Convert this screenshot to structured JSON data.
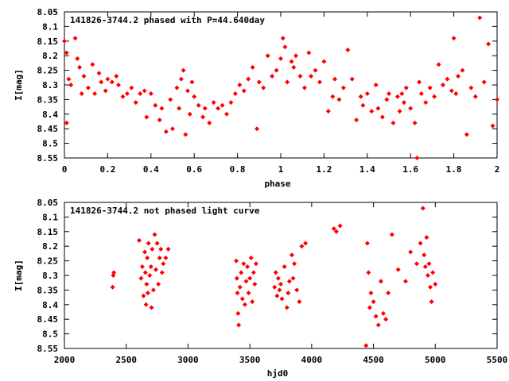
{
  "chart_data": [
    {
      "type": "scatter",
      "title": "141826-3744.2 phased with P=44.640day",
      "xlabel": "phase",
      "ylabel": "I[mag]",
      "xlim": [
        0,
        2
      ],
      "ylim": [
        8.05,
        8.55
      ],
      "y_inverted": true,
      "grid": false,
      "marker": "diamond",
      "color": "#ff0000",
      "xticks": [
        "0",
        "0.2",
        "0.4",
        "0.6",
        "0.8",
        "1",
        "1.2",
        "1.4",
        "1.6",
        "1.8",
        "2"
      ],
      "yticks": [
        "8.05",
        "8.1",
        "8.15",
        "8.2",
        "8.25",
        "8.3",
        "8.35",
        "8.4",
        "8.45",
        "8.5",
        "8.55"
      ],
      "series": [
        {
          "x": [
            0.0,
            0.01,
            0.02,
            0.01,
            0.03,
            0.05,
            0.06,
            0.07,
            0.08,
            0.09,
            0.11,
            0.13,
            0.14,
            0.16,
            0.17,
            0.19,
            0.2,
            0.22,
            0.24,
            0.25,
            0.27,
            0.29,
            0.31,
            0.33,
            0.35,
            0.37,
            0.38,
            0.4,
            0.42,
            0.44,
            0.45,
            0.47,
            0.49,
            0.5,
            0.52,
            0.53,
            0.54,
            0.55,
            0.56,
            0.57,
            0.58,
            0.59,
            0.6,
            0.62,
            0.64,
            0.65,
            0.67,
            0.69,
            0.71,
            0.73,
            0.75,
            0.77,
            0.79,
            0.81,
            0.83,
            0.85,
            0.87,
            0.89,
            0.9,
            0.92,
            0.94,
            0.96,
            0.98,
            1.0,
            1.01,
            1.02,
            1.03,
            1.05,
            1.06,
            1.07,
            1.09,
            1.11,
            1.13,
            1.14,
            1.16,
            1.18,
            1.2,
            1.22,
            1.24,
            1.25,
            1.27,
            1.29,
            1.31,
            1.33,
            1.35,
            1.37,
            1.38,
            1.4,
            1.42,
            1.44,
            1.45,
            1.47,
            1.49,
            1.5,
            1.52,
            1.54,
            1.55,
            1.56,
            1.57,
            1.58,
            1.6,
            1.62,
            1.63,
            1.64,
            1.65,
            1.67,
            1.69,
            1.71,
            1.73,
            1.75,
            1.77,
            1.79,
            1.8,
            1.81,
            1.82,
            1.84,
            1.86,
            1.88,
            1.9,
            1.92,
            1.94,
            1.96,
            1.98,
            2.0
          ],
          "y": [
            8.15,
            8.19,
            8.28,
            8.43,
            8.3,
            8.14,
            8.21,
            8.24,
            8.33,
            8.27,
            8.31,
            8.23,
            8.33,
            8.26,
            8.29,
            8.32,
            8.28,
            8.29,
            8.27,
            8.3,
            8.34,
            8.33,
            8.31,
            8.36,
            8.33,
            8.32,
            8.41,
            8.33,
            8.37,
            8.42,
            8.38,
            8.46,
            8.35,
            8.45,
            8.31,
            8.38,
            8.28,
            8.25,
            8.47,
            8.32,
            8.4,
            8.29,
            8.34,
            8.37,
            8.41,
            8.38,
            8.43,
            8.36,
            8.38,
            8.37,
            8.4,
            8.36,
            8.33,
            8.3,
            8.32,
            8.28,
            8.24,
            8.45,
            8.29,
            8.31,
            8.2,
            8.27,
            8.25,
            8.21,
            8.14,
            8.17,
            8.29,
            8.22,
            8.24,
            8.2,
            8.27,
            8.31,
            8.19,
            8.27,
            8.25,
            8.29,
            8.22,
            8.39,
            8.34,
            8.28,
            8.35,
            8.31,
            8.18,
            8.28,
            8.42,
            8.34,
            8.37,
            8.33,
            8.39,
            8.3,
            8.38,
            8.41,
            8.35,
            8.33,
            8.43,
            8.34,
            8.39,
            8.33,
            8.36,
            8.31,
            8.38,
            8.43,
            8.55,
            8.29,
            8.33,
            8.36,
            8.31,
            8.34,
            8.23,
            8.3,
            8.28,
            8.32,
            8.14,
            8.33,
            8.27,
            8.25,
            8.47,
            8.31,
            8.34,
            8.07,
            8.29,
            8.16,
            8.44,
            8.35
          ]
        }
      ]
    },
    {
      "type": "scatter",
      "title": "141826-3744.2 not phased light curve",
      "xlabel": "hjd0",
      "ylabel": "I[mag]",
      "xlim": [
        2000,
        5500
      ],
      "ylim": [
        8.05,
        8.55
      ],
      "y_inverted": true,
      "grid": false,
      "marker": "diamond",
      "color": "#ff0000",
      "xticks": [
        "2000",
        "2500",
        "3000",
        "3500",
        "4000",
        "4500",
        "5000",
        "5500"
      ],
      "yticks": [
        "8.05",
        "8.1",
        "8.15",
        "8.2",
        "8.25",
        "8.3",
        "8.35",
        "8.4",
        "8.45",
        "8.5",
        "8.55"
      ],
      "series": [
        {
          "x": [
            2390,
            2395,
            2400,
            2605,
            2620,
            2630,
            2640,
            2650,
            2655,
            2660,
            2665,
            2670,
            2675,
            2680,
            2690,
            2700,
            2705,
            2710,
            2720,
            2730,
            2740,
            2750,
            2760,
            2770,
            2780,
            2790,
            2800,
            2820,
            2840,
            3390,
            3395,
            3400,
            3405,
            3410,
            3420,
            3430,
            3440,
            3450,
            3460,
            3470,
            3480,
            3490,
            3500,
            3510,
            3520,
            3530,
            3540,
            3550,
            3700,
            3710,
            3720,
            3730,
            3740,
            3750,
            3760,
            3780,
            3800,
            3810,
            3820,
            3840,
            3850,
            3860,
            3880,
            3900,
            3920,
            3950,
            4180,
            4200,
            4230,
            4440,
            4450,
            4460,
            4470,
            4480,
            4500,
            4520,
            4540,
            4560,
            4580,
            4600,
            4620,
            4650,
            4700,
            4760,
            4800,
            4850,
            4880,
            4900,
            4910,
            4920,
            4930,
            4940,
            4950,
            4960,
            4970,
            4980,
            5000
          ],
          "y": [
            8.34,
            8.3,
            8.29,
            8.18,
            8.31,
            8.27,
            8.37,
            8.22,
            8.29,
            8.4,
            8.33,
            8.24,
            8.36,
            8.19,
            8.3,
            8.27,
            8.41,
            8.21,
            8.35,
            8.16,
            8.28,
            8.19,
            8.33,
            8.24,
            8.21,
            8.29,
            8.26,
            8.24,
            8.21,
            8.25,
            8.31,
            8.36,
            8.43,
            8.47,
            8.34,
            8.29,
            8.38,
            8.26,
            8.4,
            8.32,
            8.27,
            8.36,
            8.31,
            8.24,
            8.39,
            8.29,
            8.33,
            8.26,
            8.34,
            8.29,
            8.37,
            8.31,
            8.35,
            8.33,
            8.38,
            8.27,
            8.41,
            8.36,
            8.32,
            8.23,
            8.31,
            8.26,
            8.35,
            8.39,
            8.2,
            8.19,
            8.14,
            8.15,
            8.13,
            8.54,
            8.19,
            8.29,
            8.41,
            8.36,
            8.39,
            8.44,
            8.47,
            8.32,
            8.43,
            8.45,
            8.36,
            8.16,
            8.28,
            8.32,
            8.22,
            8.26,
            8.19,
            8.07,
            8.23,
            8.27,
            8.17,
            8.3,
            8.26,
            8.34,
            8.39,
            8.29,
            8.33
          ]
        }
      ]
    }
  ]
}
